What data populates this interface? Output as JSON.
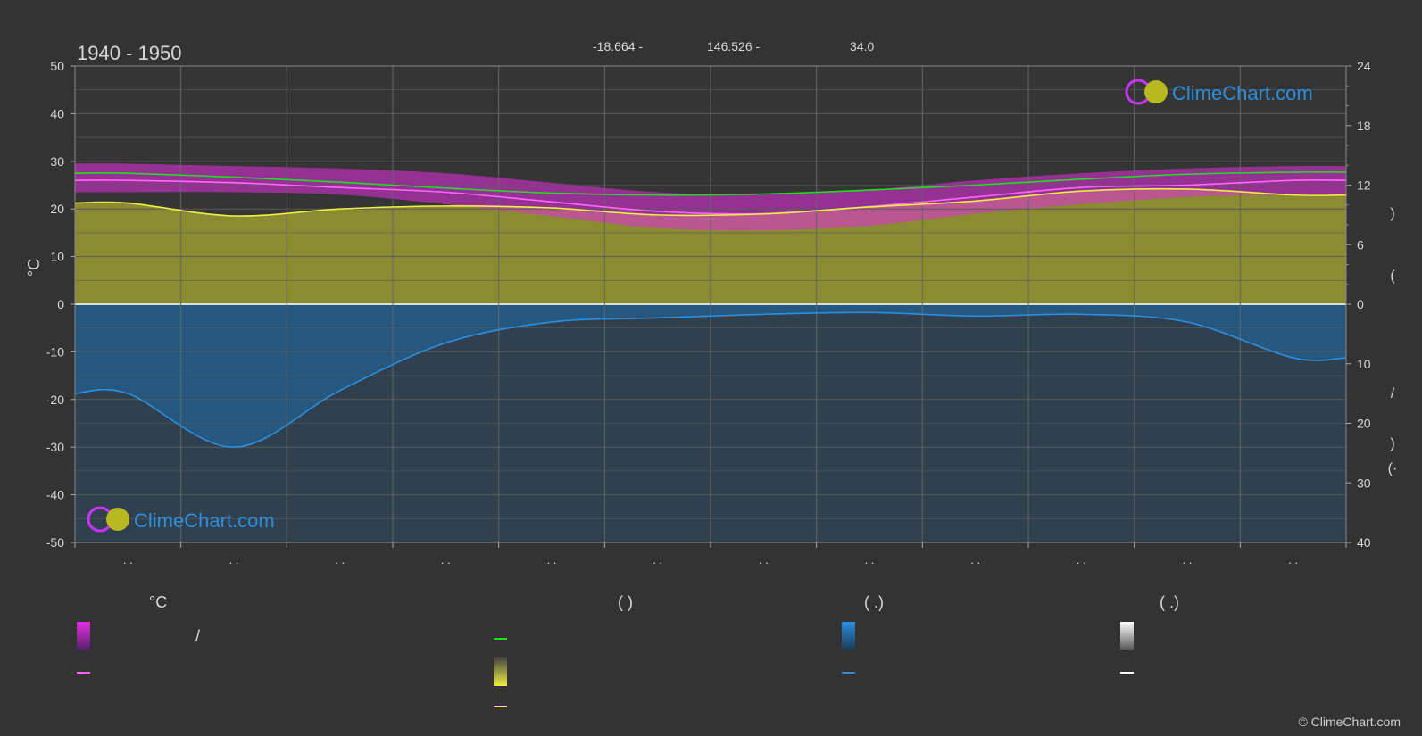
{
  "header": {
    "period": "1940 - 1950",
    "coords": [
      "-18.664 -",
      "146.526 -",
      "34.0"
    ]
  },
  "brand": {
    "logo_text": "ClimeChart.com",
    "copyright": "© ClimeChart.com"
  },
  "axes": {
    "left_unit": "°C",
    "left_ticks": [
      50,
      40,
      30,
      20,
      10,
      0,
      -10,
      -20,
      -30,
      -40,
      -50
    ],
    "right_top_ticks": [
      24,
      18,
      12,
      6,
      0
    ],
    "right_bottom_ticks": [
      10,
      20,
      30,
      40
    ],
    "right_labels": [
      ")",
      "(",
      "/",
      ")",
      "(·"
    ],
    "month_labels": [
      ". .",
      ". .",
      ". .",
      ". .",
      ". .",
      ". .",
      ". .",
      ". .",
      ". .",
      ". .",
      ". .",
      ". ."
    ]
  },
  "legend": {
    "col1_header": "°C",
    "col1_sep": "/",
    "col2_header": "(          )",
    "col3_header": "(   .)",
    "col4_header": "(   .)"
  },
  "colors": {
    "background": "#333333",
    "temp_band": "#e22ee0",
    "mean_temp_line": "#ff66ff",
    "daylight_line": "#22dd22",
    "sunshine_band": "#a8a832",
    "sunshine_line": "#eeee44",
    "precip_band": "#1e6aa8",
    "precip_line": "#2b8fe0",
    "snow_swatch": "#ffffff"
  },
  "chart_data": {
    "type": "line",
    "x": [
      0.5,
      1.5,
      2.5,
      3.5,
      4.5,
      5.5,
      6.5,
      7.5,
      8.5,
      9.5,
      10.5,
      11.5
    ],
    "xlim": [
      0,
      12
    ],
    "ylim": [
      -50,
      50
    ],
    "y2_top_lim": [
      0,
      24
    ],
    "y2_bottom_lim": [
      0,
      40
    ],
    "series": [
      {
        "key": "max_temp",
        "values": [
          29.5,
          29.0,
          28.5,
          27.5,
          25.5,
          23.5,
          23.0,
          24.0,
          26.0,
          27.5,
          28.5,
          29.0
        ]
      },
      {
        "key": "min_temp",
        "values": [
          23.5,
          23.5,
          23.0,
          21.0,
          18.5,
          16.0,
          15.5,
          16.5,
          19.0,
          21.0,
          22.5,
          23.0
        ]
      },
      {
        "key": "mean_temp",
        "values": [
          26.0,
          25.5,
          24.5,
          23.5,
          21.5,
          19.5,
          19.0,
          20.5,
          22.5,
          24.5,
          25.0,
          26.0
        ]
      },
      {
        "key": "daylight_hours",
        "values": [
          13.2,
          12.8,
          12.3,
          11.7,
          11.2,
          11.0,
          11.1,
          11.5,
          12.0,
          12.6,
          13.1,
          13.3
        ]
      },
      {
        "key": "sunshine_hours",
        "values": [
          10.2,
          8.9,
          9.6,
          9.9,
          9.7,
          9.0,
          9.1,
          9.8,
          10.4,
          11.4,
          11.6,
          11.0
        ]
      },
      {
        "key": "precipitation_mm",
        "values": [
          15.0,
          24.0,
          14.5,
          6.5,
          3.0,
          2.3,
          1.7,
          1.4,
          2.0,
          1.7,
          3.0,
          9.0
        ]
      }
    ]
  }
}
